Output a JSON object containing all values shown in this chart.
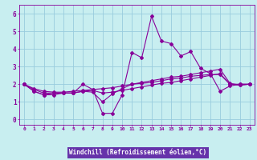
{
  "title": "",
  "xlabel": "Windchill (Refroidissement éolien,°C)",
  "ylabel": "",
  "background_color": "#c8eef0",
  "plot_bg_color": "#c8eef0",
  "xlabel_bg_color": "#6633aa",
  "line_color": "#880099",
  "grid_color": "#99ccdd",
  "xlim": [
    -0.5,
    23.5
  ],
  "ylim": [
    -0.3,
    6.5
  ],
  "xtick_labels": [
    "0",
    "1",
    "2",
    "3",
    "4",
    "5",
    "6",
    "7",
    "8",
    "9",
    "10",
    "11",
    "12",
    "13",
    "14",
    "15",
    "16",
    "17",
    "18",
    "19",
    "20",
    "21",
    "22",
    "23"
  ],
  "ytick_labels": [
    "0",
    "1",
    "2",
    "3",
    "4",
    "5",
    "6"
  ],
  "series": [
    [
      2.0,
      1.6,
      1.4,
      1.5,
      1.5,
      1.5,
      2.0,
      1.7,
      0.35,
      0.35,
      1.4,
      3.8,
      3.5,
      5.85,
      4.45,
      4.3,
      3.6,
      3.85,
      2.9,
      2.6,
      1.6,
      1.9,
      2.0,
      2.0
    ],
    [
      2.0,
      1.6,
      1.4,
      1.4,
      1.5,
      1.5,
      1.6,
      1.55,
      1.0,
      1.45,
      1.75,
      2.0,
      2.05,
      2.1,
      2.2,
      2.3,
      2.35,
      2.45,
      2.5,
      2.55,
      2.55,
      2.0,
      2.0,
      2.0
    ],
    [
      2.0,
      1.7,
      1.5,
      1.5,
      1.5,
      1.5,
      1.6,
      1.65,
      1.5,
      1.55,
      1.65,
      1.75,
      1.85,
      1.95,
      2.05,
      2.1,
      2.2,
      2.3,
      2.4,
      2.5,
      2.6,
      2.0,
      1.95,
      2.0
    ],
    [
      2.0,
      1.75,
      1.6,
      1.55,
      1.55,
      1.6,
      1.65,
      1.7,
      1.75,
      1.8,
      1.9,
      2.0,
      2.1,
      2.2,
      2.3,
      2.4,
      2.45,
      2.55,
      2.65,
      2.75,
      2.85,
      2.05,
      1.95,
      2.0
    ]
  ]
}
